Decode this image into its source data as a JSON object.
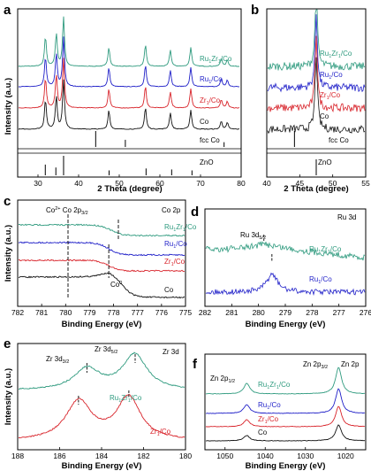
{
  "chart_data": [
    {
      "type": "line",
      "panel": "a",
      "xlabel": "2 Theta (degree)",
      "ylabel": "Intensity (a.u.)",
      "xlim": [
        25,
        80
      ],
      "xticks": [
        30,
        40,
        50,
        60,
        70,
        80
      ],
      "series": [
        {
          "name": "Ru1Zr1/Co",
          "label_main": "Ru",
          "label_sub1": "1",
          "label_mid": "Zr",
          "label_sub2": "1",
          "label_end": "/Co",
          "color": "#2e9a7e",
          "peaks": [
            [
              31.7,
              0.55
            ],
            [
              34.4,
              0.6
            ],
            [
              36.2,
              0.9
            ],
            [
              47.5,
              0.35
            ],
            [
              56.6,
              0.4
            ],
            [
              62.8,
              0.3
            ],
            [
              67.9,
              0.35
            ],
            [
              75.5,
              0.15
            ],
            [
              77.0,
              0.12
            ]
          ]
        },
        {
          "name": "Ru1/Co",
          "label_main": "Ru",
          "label_sub1": "1",
          "label_mid": "",
          "label_sub2": "",
          "label_end": "/Co",
          "color": "#1f1fc8",
          "peaks": [
            [
              31.7,
              0.55
            ],
            [
              34.4,
              0.6
            ],
            [
              36.2,
              0.9
            ],
            [
              47.5,
              0.35
            ],
            [
              56.6,
              0.4
            ],
            [
              62.8,
              0.3
            ],
            [
              67.9,
              0.35
            ],
            [
              75.5,
              0.15
            ],
            [
              77.0,
              0.12
            ]
          ]
        },
        {
          "name": "Zr1/Co",
          "label_main": "",
          "label_sub1": "",
          "label_mid": "Zr",
          "label_sub2": "1",
          "label_end": "/Co",
          "color": "#d8232a",
          "peaks": [
            [
              31.7,
              0.55
            ],
            [
              34.4,
              0.6
            ],
            [
              36.2,
              0.9
            ],
            [
              47.5,
              0.35
            ],
            [
              56.6,
              0.4
            ],
            [
              62.8,
              0.3
            ],
            [
              67.9,
              0.35
            ],
            [
              75.5,
              0.15
            ],
            [
              77.0,
              0.12
            ]
          ]
        },
        {
          "name": "Co",
          "label_main": "",
          "label_sub1": "",
          "label_mid": "",
          "label_sub2": "",
          "label_end": "Co",
          "color": "#111111",
          "peaks": [
            [
              31.7,
              0.55
            ],
            [
              34.4,
              0.6
            ],
            [
              36.2,
              0.9
            ],
            [
              47.5,
              0.35
            ],
            [
              56.6,
              0.4
            ],
            [
              62.8,
              0.3
            ],
            [
              67.9,
              0.35
            ],
            [
              75.5,
              0.15
            ],
            [
              77.0,
              0.12
            ]
          ]
        }
      ],
      "references": [
        {
          "name": "fcc Co",
          "sticks": [
            [
              44.2,
              1.0
            ],
            [
              51.5,
              0.45
            ],
            [
              75.8,
              0.3
            ]
          ]
        },
        {
          "name": "ZnO",
          "sticks": [
            [
              31.8,
              0.55
            ],
            [
              34.4,
              0.4
            ],
            [
              36.3,
              1.0
            ],
            [
              47.5,
              0.25
            ],
            [
              56.6,
              0.35
            ],
            [
              62.9,
              0.3
            ],
            [
              67.9,
              0.25
            ]
          ]
        }
      ]
    },
    {
      "type": "line",
      "panel": "b",
      "xlabel": "2 Theta (degree)",
      "xlim": [
        40,
        55
      ],
      "xticks": [
        40,
        45,
        50,
        55
      ],
      "series": [
        {
          "name": "Ru1Zr1/Co",
          "color": "#2e9a7e",
          "peak": [
            47.5,
            1.4
          ],
          "noise": 0.16
        },
        {
          "name": "Ru1/Co",
          "color": "#1f1fc8",
          "peak": [
            47.5,
            1.4
          ],
          "noise": 0.16
        },
        {
          "name": "Zr1/Co",
          "color": "#d8232a",
          "peak": [
            47.5,
            1.4
          ],
          "noise": 0.16
        },
        {
          "name": "Co",
          "color": "#111111",
          "peak": [
            47.5,
            1.4
          ],
          "noise": 0.16
        }
      ],
      "references": [
        {
          "name": "fcc Co",
          "sticks": [
            [
              44.2,
              1.0
            ]
          ]
        },
        {
          "name": "ZnO",
          "sticks": [
            [
              47.5,
              1.0
            ]
          ]
        }
      ]
    },
    {
      "type": "line",
      "panel": "c",
      "title": "Co 2p",
      "xlabel": "Binding Energy (eV)",
      "ylabel": "Intensity (a.u.)",
      "xlim": [
        782,
        775
      ],
      "xticks": [
        782,
        781,
        780,
        779,
        778,
        777,
        776,
        775
      ],
      "annotations": [
        "Co",
        "Co 2p",
        "Co"
      ],
      "dashed_lines": [
        779.9,
        778.2,
        777.8
      ],
      "series": [
        {
          "name": "Ru1Zr1/Co",
          "color": "#2e9a7e"
        },
        {
          "name": "Ru1/Co",
          "color": "#1f1fc8"
        },
        {
          "name": "Zr1/Co",
          "color": "#d8232a"
        },
        {
          "name": "Co",
          "color": "#111111"
        }
      ]
    },
    {
      "type": "line",
      "panel": "d",
      "title": "Ru 3d",
      "xlabel": "Binding Energy (eV)",
      "xlim": [
        282,
        276
      ],
      "xticks": [
        282,
        281,
        280,
        279,
        278,
        277,
        276
      ],
      "annotations": [
        "Ru 3d"
      ],
      "peak_marks": [
        279.8,
        279.5
      ],
      "series": [
        {
          "name": "Ru1Zr1/Co",
          "color": "#2e9a7e"
        },
        {
          "name": "Ru1/Co",
          "color": "#1f1fc8"
        }
      ]
    },
    {
      "type": "line",
      "panel": "e",
      "title": "Zr 3d",
      "xlabel": "Binding Energy (eV)",
      "ylabel": "Intensity (a.u.)",
      "xlim": [
        188,
        180
      ],
      "xticks": [
        188,
        186,
        184,
        182,
        180
      ],
      "annotations": [
        "Zr 3d",
        "Zr 3d"
      ],
      "peak_marks": [
        184.7,
        182.4,
        185.1,
        182.7
      ],
      "series": [
        {
          "name": "Ru1Zr1/Co",
          "color": "#2e9a7e"
        },
        {
          "name": "Zr1/Co",
          "color": "#d8232a"
        }
      ]
    },
    {
      "type": "line",
      "panel": "f",
      "title": "Zn 2p",
      "xlabel": "Binding Energy (eV)",
      "xlim": [
        1055,
        1015
      ],
      "xticks": [
        1050,
        1040,
        1030,
        1020
      ],
      "annotations": [
        "Zn 2p",
        "Zn 2p"
      ],
      "series": [
        {
          "name": "Ru1Zr1/Co",
          "color": "#2e9a7e"
        },
        {
          "name": "Ru1/Co",
          "color": "#1f1fc8"
        },
        {
          "name": "Zr1/Co",
          "color": "#d8232a"
        },
        {
          "name": "Co",
          "color": "#111111"
        }
      ]
    }
  ]
}
